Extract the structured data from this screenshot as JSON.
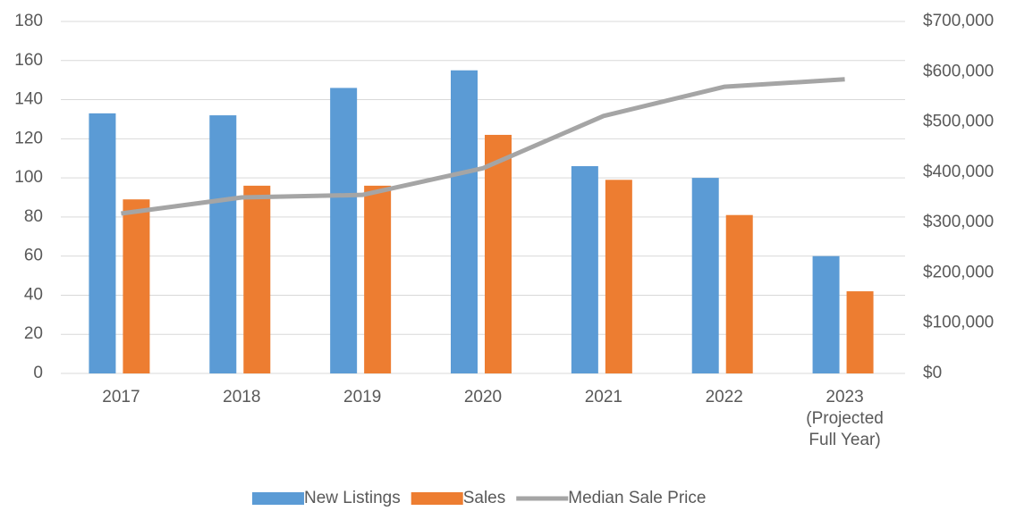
{
  "chart_data": {
    "type": "bar",
    "categories": [
      "2017",
      "2018",
      "2019",
      "2020",
      "2021",
      "2022",
      "2023\n(Projected\nFull Year)"
    ],
    "series": [
      {
        "name": "New Listings",
        "color": "#5b9bd5",
        "values": [
          133,
          132,
          146,
          155,
          106,
          100,
          60
        ]
      },
      {
        "name": "Sales",
        "color": "#ed7d31",
        "values": [
          89,
          96,
          96,
          122,
          99,
          81,
          42
        ]
      },
      {
        "name": "Median Sale Price",
        "color": "#a5a5a5",
        "type": "line",
        "axis": "y2",
        "values": [
          318000,
          350000,
          355000,
          408000,
          512000,
          570000,
          585000
        ]
      }
    ],
    "ylim": [
      0,
      180
    ],
    "yticks": [
      0,
      20,
      40,
      60,
      80,
      100,
      120,
      140,
      160,
      180
    ],
    "y2lim": [
      0,
      700000
    ],
    "y2ticks": [
      {
        "value": 0,
        "label": "$0"
      },
      {
        "value": 100000,
        "label": "$100,000"
      },
      {
        "value": 200000,
        "label": "$200,000"
      },
      {
        "value": 300000,
        "label": "$300,000"
      },
      {
        "value": 400000,
        "label": "$400,000"
      },
      {
        "value": 500000,
        "label": "$500,000"
      },
      {
        "value": 600000,
        "label": "$600,000"
      },
      {
        "value": 700000,
        "label": "$700,000"
      }
    ],
    "grid": true,
    "legend": "bottom"
  }
}
